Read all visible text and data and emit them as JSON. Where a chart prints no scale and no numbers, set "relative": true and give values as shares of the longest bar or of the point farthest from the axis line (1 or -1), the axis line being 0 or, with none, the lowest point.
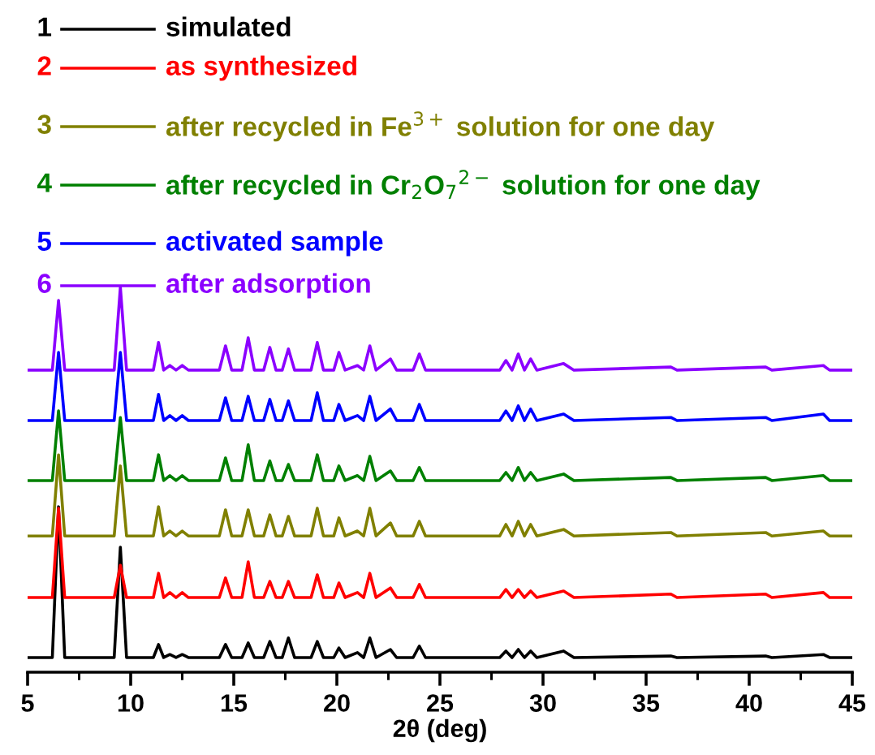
{
  "chart_data": {
    "type": "line",
    "relative": true,
    "xlabel": "2θ (deg)",
    "xlim": [
      5,
      45
    ],
    "xticks": [
      5,
      10,
      15,
      20,
      25,
      30,
      35,
      40,
      45
    ],
    "legend": "top left",
    "grid": false,
    "marker": "none",
    "line_style": "solid",
    "annotations": [
      "1",
      "2",
      "3",
      "4",
      "5",
      "6"
    ],
    "x": [
      5.0,
      6.2,
      6.5,
      6.8,
      9.2,
      9.5,
      9.8,
      11.1,
      11.35,
      11.6,
      11.9,
      12.2,
      12.5,
      12.8,
      14.3,
      14.6,
      14.9,
      15.4,
      15.7,
      16.0,
      16.45,
      16.75,
      17.05,
      17.35,
      17.65,
      17.95,
      18.75,
      19.05,
      19.35,
      19.85,
      20.1,
      20.4,
      21.0,
      21.3,
      21.6,
      21.9,
      22.6,
      22.9,
      23.7,
      24.0,
      24.3,
      27.9,
      28.2,
      28.5,
      28.8,
      29.1,
      29.4,
      29.7,
      31.0,
      31.5,
      36.2,
      36.5,
      40.8,
      41.1,
      43.6,
      43.9,
      45.0
    ],
    "series": [
      {
        "name": "simulated",
        "color": "#000000",
        "values": [
          0.038,
          0.038,
          0.43,
          0.038,
          0.038,
          0.325,
          0.038,
          0.038,
          0.072,
          0.038,
          0.046,
          0.038,
          0.046,
          0.038,
          0.038,
          0.072,
          0.038,
          0.038,
          0.076,
          0.038,
          0.038,
          0.08,
          0.038,
          0.038,
          0.089,
          0.038,
          0.038,
          0.08,
          0.038,
          0.038,
          0.063,
          0.038,
          0.051,
          0.038,
          0.089,
          0.038,
          0.059,
          0.038,
          0.038,
          0.068,
          0.038,
          0.038,
          0.055,
          0.038,
          0.059,
          0.038,
          0.055,
          0.038,
          0.055,
          0.038,
          0.042,
          0.038,
          0.042,
          0.038,
          0.046,
          0.038,
          0.038
        ]
      },
      {
        "name": "as synthesized",
        "color": "#ff0000",
        "values": [
          0.194,
          0.194,
          0.426,
          0.194,
          0.194,
          0.278,
          0.194,
          0.194,
          0.257,
          0.194,
          0.207,
          0.194,
          0.207,
          0.194,
          0.194,
          0.245,
          0.194,
          0.194,
          0.287,
          0.194,
          0.194,
          0.236,
          0.194,
          0.194,
          0.236,
          0.194,
          0.194,
          0.253,
          0.194,
          0.194,
          0.232,
          0.194,
          0.207,
          0.194,
          0.257,
          0.194,
          0.219,
          0.194,
          0.194,
          0.228,
          0.194,
          0.194,
          0.215,
          0.194,
          0.215,
          0.194,
          0.211,
          0.194,
          0.211,
          0.194,
          0.203,
          0.194,
          0.203,
          0.194,
          0.207,
          0.194,
          0.194
        ]
      },
      {
        "name": "after recycled in Fe$^{3+}$ solution for one day",
        "color": "#808000",
        "values": [
          0.354,
          0.354,
          0.565,
          0.354,
          0.354,
          0.536,
          0.354,
          0.354,
          0.43,
          0.354,
          0.367,
          0.354,
          0.367,
          0.354,
          0.354,
          0.422,
          0.354,
          0.354,
          0.422,
          0.354,
          0.354,
          0.409,
          0.354,
          0.354,
          0.405,
          0.354,
          0.354,
          0.426,
          0.354,
          0.354,
          0.401,
          0.354,
          0.367,
          0.354,
          0.426,
          0.354,
          0.388,
          0.354,
          0.354,
          0.392,
          0.354,
          0.354,
          0.384,
          0.354,
          0.392,
          0.354,
          0.384,
          0.354,
          0.371,
          0.354,
          0.363,
          0.354,
          0.363,
          0.354,
          0.367,
          0.354,
          0.354
        ]
      },
      {
        "name": "after recycled in Cr$_{2}$O$_{7}$$^{2−}$ solution for one day",
        "color": "#008000",
        "values": [
          0.498,
          0.498,
          0.679,
          0.498,
          0.498,
          0.662,
          0.498,
          0.498,
          0.565,
          0.498,
          0.511,
          0.498,
          0.511,
          0.498,
          0.498,
          0.557,
          0.498,
          0.498,
          0.591,
          0.498,
          0.498,
          0.549,
          0.498,
          0.498,
          0.54,
          0.498,
          0.498,
          0.565,
          0.498,
          0.498,
          0.536,
          0.498,
          0.511,
          0.498,
          0.561,
          0.498,
          0.523,
          0.498,
          0.498,
          0.532,
          0.498,
          0.498,
          0.519,
          0.498,
          0.532,
          0.498,
          0.519,
          0.498,
          0.515,
          0.498,
          0.506,
          0.498,
          0.506,
          0.498,
          0.511,
          0.498,
          0.498
        ]
      },
      {
        "name": "activated sample",
        "color": "#0000ff",
        "values": [
          0.654,
          0.654,
          0.831,
          0.654,
          0.654,
          0.831,
          0.654,
          0.654,
          0.722,
          0.654,
          0.667,
          0.654,
          0.667,
          0.654,
          0.654,
          0.713,
          0.654,
          0.654,
          0.717,
          0.654,
          0.654,
          0.709,
          0.654,
          0.654,
          0.705,
          0.654,
          0.654,
          0.726,
          0.654,
          0.654,
          0.696,
          0.654,
          0.667,
          0.654,
          0.717,
          0.654,
          0.684,
          0.654,
          0.654,
          0.696,
          0.654,
          0.654,
          0.679,
          0.654,
          0.692,
          0.654,
          0.684,
          0.654,
          0.671,
          0.654,
          0.662,
          0.654,
          0.662,
          0.654,
          0.671,
          0.654,
          0.654
        ]
      },
      {
        "name": "after adsorption",
        "color": "#8b00ff",
        "values": [
          0.785,
          0.785,
          0.966,
          0.785,
          0.785,
          1.0,
          0.785,
          0.785,
          0.857,
          0.785,
          0.797,
          0.785,
          0.797,
          0.785,
          0.785,
          0.848,
          0.785,
          0.785,
          0.869,
          0.785,
          0.785,
          0.844,
          0.785,
          0.785,
          0.84,
          0.785,
          0.785,
          0.857,
          0.785,
          0.785,
          0.831,
          0.785,
          0.797,
          0.785,
          0.848,
          0.785,
          0.814,
          0.785,
          0.785,
          0.827,
          0.785,
          0.785,
          0.81,
          0.785,
          0.827,
          0.785,
          0.814,
          0.785,
          0.802,
          0.785,
          0.793,
          0.785,
          0.793,
          0.785,
          0.797,
          0.785,
          0.785
        ]
      }
    ]
  }
}
